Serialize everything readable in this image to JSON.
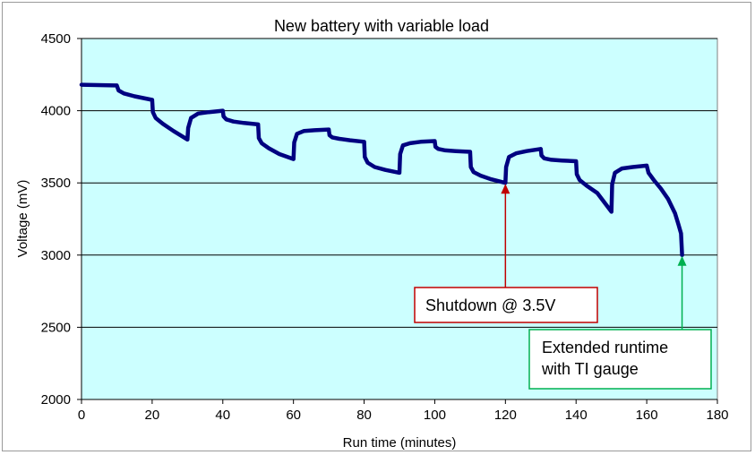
{
  "chart_data": {
    "type": "line",
    "title": "New battery with variable load",
    "xlabel": "Run time (minutes)",
    "ylabel": "Voltage  (mV)",
    "xlim": [
      0,
      180
    ],
    "ylim": [
      2000,
      4500
    ],
    "xticks": [
      0,
      20,
      40,
      60,
      80,
      100,
      120,
      140,
      160,
      180
    ],
    "yticks": [
      2000,
      2500,
      3000,
      3500,
      4000,
      4500
    ],
    "grid": "horizontal",
    "background": "#ccffff",
    "series": [
      {
        "name": "Voltage",
        "color": "#000080",
        "x": [
          0,
          10,
          10.5,
          12,
          15,
          20,
          20.2,
          21,
          23,
          26,
          30,
          30.2,
          31,
          33,
          36,
          40,
          40.2,
          41,
          43,
          46,
          50,
          50.2,
          51,
          53,
          56,
          60,
          60.2,
          61,
          63,
          66,
          70,
          70.2,
          71,
          73,
          76,
          80,
          80.2,
          81,
          83,
          86,
          90,
          90.2,
          91,
          93,
          96,
          100,
          100.2,
          101,
          103,
          106,
          110,
          110.2,
          111,
          113,
          116,
          120,
          120.2,
          121,
          123,
          126,
          130,
          130.2,
          131,
          133,
          136,
          140,
          140.2,
          141,
          143,
          146,
          150,
          150.2,
          151,
          153,
          156,
          160,
          160.5,
          162,
          164,
          166,
          168,
          169,
          169.7,
          170
        ],
        "y": [
          4180,
          4175,
          4140,
          4120,
          4100,
          4075,
          3990,
          3950,
          3910,
          3860,
          3800,
          3880,
          3950,
          3980,
          3990,
          4000,
          3960,
          3940,
          3925,
          3915,
          3905,
          3810,
          3775,
          3740,
          3700,
          3665,
          3780,
          3840,
          3860,
          3865,
          3870,
          3830,
          3815,
          3805,
          3795,
          3785,
          3680,
          3640,
          3610,
          3590,
          3570,
          3700,
          3760,
          3775,
          3785,
          3790,
          3750,
          3735,
          3725,
          3720,
          3715,
          3610,
          3575,
          3550,
          3525,
          3500,
          3610,
          3680,
          3705,
          3720,
          3735,
          3690,
          3670,
          3660,
          3655,
          3650,
          3560,
          3520,
          3480,
          3430,
          3300,
          3490,
          3570,
          3600,
          3610,
          3620,
          3570,
          3520,
          3460,
          3390,
          3290,
          3210,
          3150,
          3000
        ]
      }
    ],
    "annotations": [
      {
        "lines": [
          "Shutdown @ 3.5V"
        ],
        "target": [
          120,
          3500
        ],
        "color": "#c00000"
      },
      {
        "lines": [
          "Extended runtime",
          "with TI gauge"
        ],
        "target": [
          170,
          3000
        ],
        "color": "#00b050"
      }
    ]
  }
}
